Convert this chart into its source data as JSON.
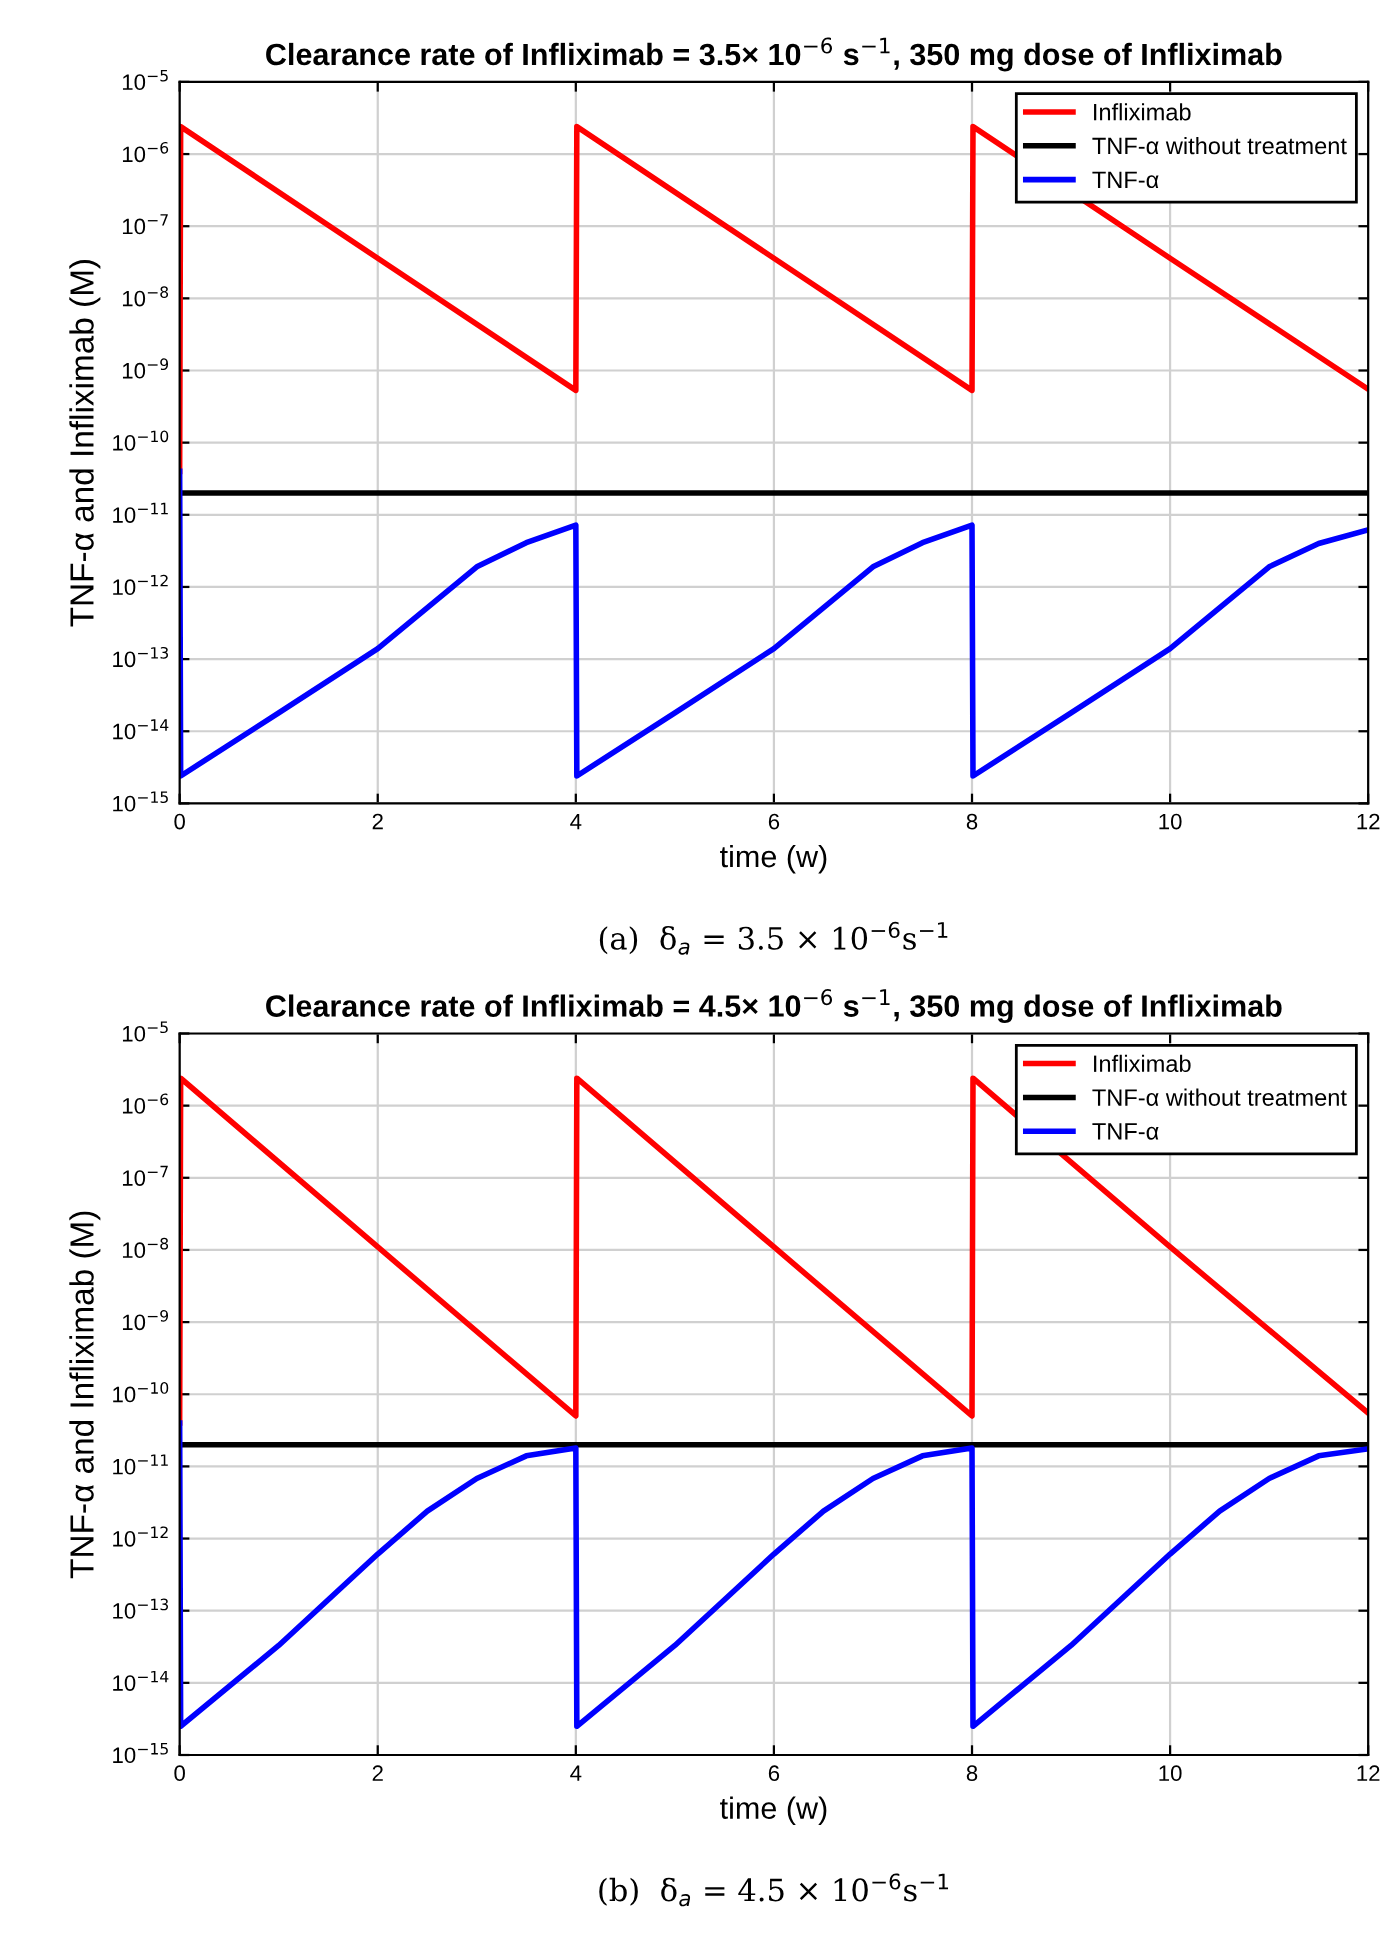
{
  "chart_data": [
    {
      "type": "line",
      "title": "Clearance rate of Infliximab = 3.5× 10$^{−6}$ s$^{−1}$, 350 mg dose of Infliximab",
      "xlabel": "time (w)",
      "ylabel": "TNF-α and Infliximab (M)",
      "annotations": [
        "(a)  δ$_{a}$ = 3.5 × 10$^{−6}$s$^{−1}$"
      ],
      "log": "y",
      "grid": true,
      "legend": "top right",
      "line_style": "solid",
      "xlim": [
        0,
        12
      ],
      "ylim": [
        1e-15,
        1e-05
      ],
      "xticks": [
        0,
        2,
        4,
        6,
        8,
        10,
        12
      ],
      "yticks": [
        {
          "value": 1e-15,
          "label": "10$^{−15}$"
        },
        {
          "value": 1e-14,
          "label": "10$^{−14}$"
        },
        {
          "value": 1e-13,
          "label": "10$^{−13}$"
        },
        {
          "value": 1e-12,
          "label": "10$^{−12}$"
        },
        {
          "value": 1e-11,
          "label": "10$^{−11}$"
        },
        {
          "value": 1e-10,
          "label": "10$^{−10}$"
        },
        {
          "value": 1e-09,
          "label": "10$^{−9}$"
        },
        {
          "value": 1e-08,
          "label": "10$^{−8}$"
        },
        {
          "value": 1e-07,
          "label": "10$^{−7}$"
        },
        {
          "value": 1e-06,
          "label": "10$^{−6}$"
        },
        {
          "value": 1e-05,
          "label": "10$^{−5}$"
        }
      ],
      "series": [
        {
          "name": "Infliximab",
          "color": "#ff0000",
          "x": [
            0,
            0.01,
            2,
            4,
            4.01,
            6,
            8,
            8.01,
            10,
            12
          ],
          "values": [
            4e-11,
            2.4e-06,
            3.6e-08,
            5.3e-10,
            2.4e-06,
            3.6e-08,
            5.3e-10,
            2.4e-06,
            3.6e-08,
            5.5e-10
          ]
        },
        {
          "name": "TNF-α without treatment",
          "color": "#000000",
          "x": [
            0,
            12
          ],
          "values": [
            2e-11,
            2e-11
          ]
        },
        {
          "name": "TNF-α",
          "color": "#0000ff",
          "x": [
            0,
            0.01,
            1,
            2,
            3,
            3.5,
            4,
            4.01,
            5,
            6,
            7,
            7.5,
            8,
            8.01,
            9,
            10,
            11,
            11.5,
            12
          ],
          "values": [
            4e-11,
            2.4e-15,
            1.8e-14,
            1.4e-13,
            1.9e-12,
            4.1e-12,
            7.2e-12,
            2.4e-15,
            1.8e-14,
            1.4e-13,
            1.9e-12,
            4.1e-12,
            7.2e-12,
            2.4e-15,
            1.8e-14,
            1.4e-13,
            1.9e-12,
            4e-12,
            6.2e-12
          ]
        }
      ]
    },
    {
      "type": "line",
      "title": "Clearance rate of Infliximab = 4.5× 10$^{−6}$ s$^{−1}$, 350 mg dose of Infliximab",
      "xlabel": "time (w)",
      "ylabel": "TNF-α and Infliximab (M)",
      "annotations": [
        "(b)  δ$_{a}$ = 4.5 × 10$^{−6}$s$^{−1}$"
      ],
      "log": "y",
      "grid": true,
      "legend": "top right",
      "line_style": "solid",
      "xlim": [
        0,
        12
      ],
      "ylim": [
        1e-15,
        1e-05
      ],
      "xticks": [
        0,
        2,
        4,
        6,
        8,
        10,
        12
      ],
      "yticks": [
        {
          "value": 1e-15,
          "label": "10$^{−15}$"
        },
        {
          "value": 1e-14,
          "label": "10$^{−14}$"
        },
        {
          "value": 1e-13,
          "label": "10$^{−13}$"
        },
        {
          "value": 1e-12,
          "label": "10$^{−12}$"
        },
        {
          "value": 1e-11,
          "label": "10$^{−11}$"
        },
        {
          "value": 1e-10,
          "label": "10$^{−10}$"
        },
        {
          "value": 1e-09,
          "label": "10$^{−9}$"
        },
        {
          "value": 1e-08,
          "label": "10$^{−8}$"
        },
        {
          "value": 1e-07,
          "label": "10$^{−7}$"
        },
        {
          "value": 1e-06,
          "label": "10$^{−6}$"
        },
        {
          "value": 1e-05,
          "label": "10$^{−5}$"
        }
      ],
      "series": [
        {
          "name": "Infliximab",
          "color": "#ff0000",
          "x": [
            0,
            0.01,
            2,
            4,
            4.01,
            6,
            8,
            8.01,
            10,
            12
          ],
          "values": [
            4e-11,
            2.4e-06,
            1.1e-08,
            5e-11,
            2.4e-06,
            1.1e-08,
            5e-11,
            2.4e-06,
            1.1e-08,
            5.5e-11
          ]
        },
        {
          "name": "TNF-α without treatment",
          "color": "#000000",
          "x": [
            0,
            12
          ],
          "values": [
            2e-11,
            2e-11
          ]
        },
        {
          "name": "TNF-α",
          "color": "#0000ff",
          "x": [
            0,
            0.01,
            1,
            2,
            2.5,
            3,
            3.5,
            4,
            4.01,
            5,
            6,
            6.5,
            7,
            7.5,
            8,
            8.01,
            9,
            10,
            10.5,
            11,
            11.5,
            12
          ],
          "values": [
            4e-11,
            2.5e-15,
            3.3e-14,
            6.1e-13,
            2.4e-12,
            6.8e-12,
            1.4e-11,
            1.8e-11,
            2.5e-15,
            3.3e-14,
            6.1e-13,
            2.4e-12,
            6.8e-12,
            1.4e-11,
            1.8e-11,
            2.5e-15,
            3.3e-14,
            6.1e-13,
            2.4e-12,
            6.8e-12,
            1.4e-11,
            1.75e-11
          ]
        }
      ]
    }
  ]
}
